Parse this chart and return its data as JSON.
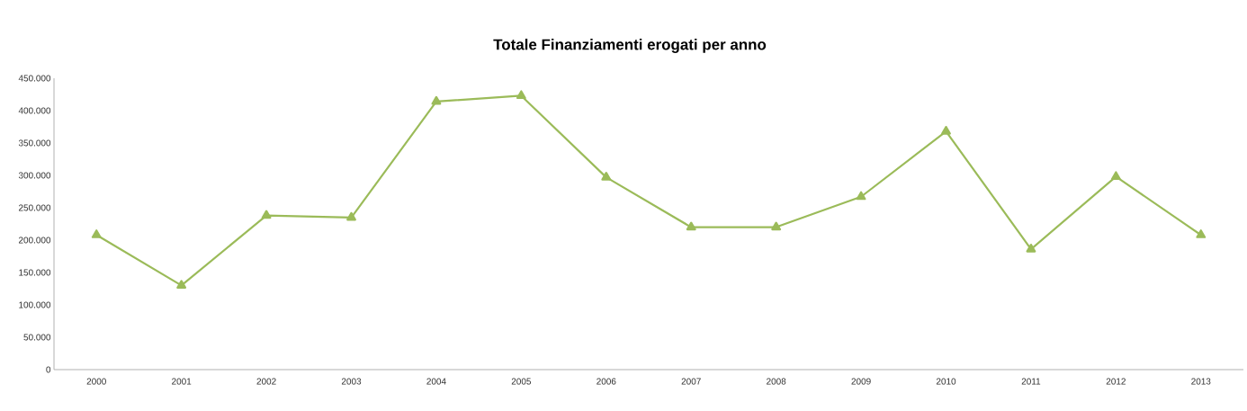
{
  "chart_data": {
    "type": "line",
    "title": "Totale Finanziamenti erogati per anno",
    "categories": [
      "2000",
      "2001",
      "2002",
      "2003",
      "2004",
      "2005",
      "2006",
      "2007",
      "2008",
      "2009",
      "2010",
      "2011",
      "2012",
      "2013"
    ],
    "values": [
      208000,
      130000,
      238000,
      235000,
      414000,
      423000,
      297000,
      220000,
      220000,
      267000,
      368000,
      186000,
      298000,
      208000
    ],
    "color": "#9bbb59",
    "marker": "triangle",
    "line_style": "solid",
    "ylim": [
      0,
      450000
    ],
    "yticks": [
      {
        "value": 0,
        "label": "0"
      },
      {
        "value": 50000,
        "label": "50.000"
      },
      {
        "value": 100000,
        "label": "100.000"
      },
      {
        "value": 150000,
        "label": "150.000"
      },
      {
        "value": 200000,
        "label": "200.000"
      },
      {
        "value": 250000,
        "label": "250.000"
      },
      {
        "value": 300000,
        "label": "300.000"
      },
      {
        "value": 350000,
        "label": "350.000"
      },
      {
        "value": 400000,
        "label": "400.000"
      },
      {
        "value": 450000,
        "label": "450.000"
      }
    ],
    "grid": false
  }
}
